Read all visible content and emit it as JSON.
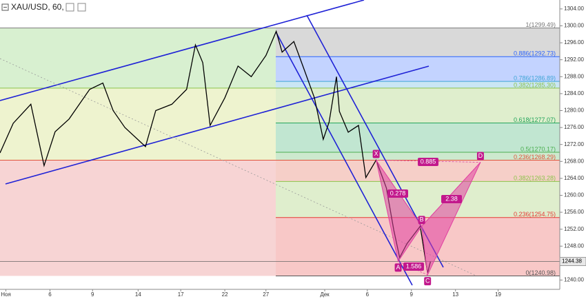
{
  "chart_data": {
    "type": "line",
    "title": "XAU/USD, 60,",
    "x": [
      0,
      0.9,
      2.1,
      3.0,
      3.75,
      4.7,
      6.1,
      7.0,
      7.7,
      8.5,
      9.9,
      10.6,
      11.7,
      12.7,
      13.3,
      13.8,
      14.3,
      15.3,
      16.2,
      17.1,
      18.1,
      18.8,
      19.2,
      20.0,
      20.7,
      21.4,
      22.0,
      22.4,
      22.9,
      23.1,
      23.7,
      24.4,
      24.9,
      25.6,
      26.3,
      26.8,
      27.2,
      27.7,
      28.6,
      29.1,
      29.3
    ],
    "series": [
      {
        "name": "XAU/USD",
        "color": "#000000",
        "values": [
          1270,
          1277,
          1281.5,
          1267,
          1275,
          1278,
          1285,
          1286.5,
          1280,
          1276,
          1271.5,
          1280,
          1281.5,
          1285,
          1295.5,
          1291.3,
          1276.5,
          1283,
          1290.5,
          1288,
          1293,
          1298.7,
          1293.8,
          1296.3,
          1289.7,
          1283,
          1273.2,
          1277.3,
          1288,
          1279.8,
          1274.9,
          1276.5,
          1264.2,
          1268.3,
          1261.7,
          1251.8,
          1245.3,
          1248.6,
          1252.7,
          1241.7,
          1244.38
        ]
      }
    ],
    "last_price": {
      "value": 1244.38,
      "label": "1244.38"
    },
    "xlim": [
      0,
      38.1
    ],
    "xticks": [
      {
        "value": 0.4,
        "label": "Ноя"
      },
      {
        "value": 3.4,
        "label": "6"
      },
      {
        "value": 6.3,
        "label": "9"
      },
      {
        "value": 9.4,
        "label": "14"
      },
      {
        "value": 12.3,
        "label": "17"
      },
      {
        "value": 15.3,
        "label": "22"
      },
      {
        "value": 18.1,
        "label": "27"
      },
      {
        "value": 22.1,
        "label": "Дек"
      },
      {
        "value": 25.0,
        "label": "6"
      },
      {
        "value": 28.0,
        "label": "9"
      },
      {
        "value": 31.0,
        "label": "13"
      },
      {
        "value": 33.9,
        "label": "19"
      }
    ],
    "ylim": [
      1237.8,
      1306.1
    ],
    "yticks": [
      {
        "value": 1240,
        "label": "1240.00"
      },
      {
        "value": 1244,
        "label": "1244.00"
      },
      {
        "value": 1248,
        "label": "1248.00"
      },
      {
        "value": 1252,
        "label": "1252.00"
      },
      {
        "value": 1256,
        "label": "1256.00"
      },
      {
        "value": 1260,
        "label": "1260.00"
      },
      {
        "value": 1264,
        "label": "1264.00"
      },
      {
        "value": 1268,
        "label": "1268.00"
      },
      {
        "value": 1272,
        "label": "1272.00"
      },
      {
        "value": 1276,
        "label": "1276.00"
      },
      {
        "value": 1280,
        "label": "1280.00"
      },
      {
        "value": 1284,
        "label": "1284.00"
      },
      {
        "value": 1288,
        "label": "1288.00"
      },
      {
        "value": 1292,
        "label": "1292.00"
      },
      {
        "value": 1296,
        "label": "1296.00"
      },
      {
        "value": 1300,
        "label": "1300.00"
      },
      {
        "value": 1304,
        "label": "1304.00"
      }
    ],
    "fib_levels": [
      {
        "value": 1299.49,
        "label": "1(1299.49)",
        "color": "#787878"
      },
      {
        "value": 1292.73,
        "label": "0.886(1292.73)",
        "color": "#2962ff"
      },
      {
        "value": 1286.89,
        "label": "0.786(1286.89)",
        "color": "#3fa5d6"
      },
      {
        "value": 1285.3,
        "label": "0.382(1285.30)",
        "color": "#8bc34a"
      },
      {
        "value": 1277.07,
        "label": "0.618(1277.07)",
        "color": "#22a45a"
      },
      {
        "value": 1270.17,
        "label": "0.5(1270.17)",
        "color": "#4caf50"
      },
      {
        "value": 1268.29,
        "label": "0.236(1268.29)",
        "color": "#e0533a"
      },
      {
        "value": 1263.28,
        "label": "0.382(1263.28)",
        "color": "#8bc34a"
      },
      {
        "value": 1254.75,
        "label": "0.236(1254.75)",
        "color": "#e53935"
      },
      {
        "value": 1240.98,
        "label": "0(1240.98)",
        "color": "#555555"
      }
    ],
    "harmonic": {
      "color": "#e040a0",
      "points": [
        {
          "label": "X",
          "x": 25.6,
          "value": 1268.3
        },
        {
          "label": "A",
          "x": 27.1,
          "value": 1244.4
        },
        {
          "label": "B",
          "x": 28.7,
          "value": 1252.7
        },
        {
          "label": "C",
          "x": 29.1,
          "value": 1241.2
        },
        {
          "label": "D",
          "x": 32.7,
          "value": 1267.8
        }
      ],
      "ratios": [
        "0.885",
        "0.278",
        "2.38",
        "1.586"
      ]
    }
  }
}
